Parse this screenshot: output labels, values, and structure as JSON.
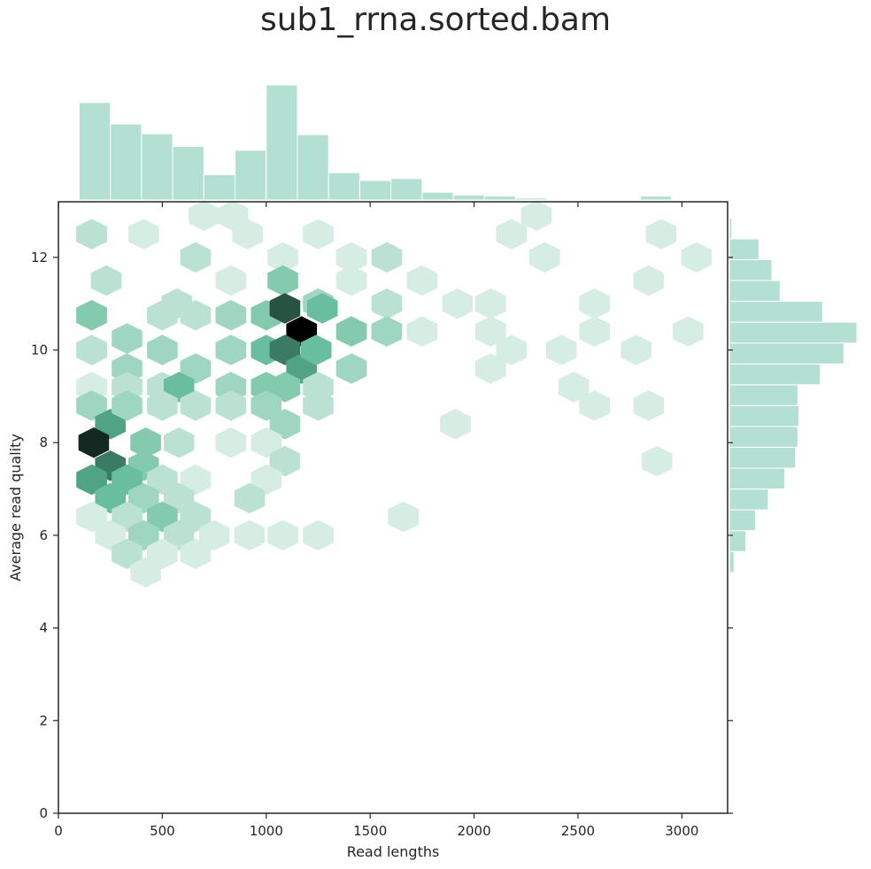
{
  "chart_data": {
    "type": "hexbin-joint",
    "title": "sub1_rrna.sorted.bam",
    "xlabel": "Read lengths",
    "ylabel": "Average read quality",
    "xlim": [
      0,
      3220
    ],
    "ylim": [
      0,
      13.2
    ],
    "x_ticks": [
      0,
      500,
      1000,
      1500,
      2000,
      2500,
      3000
    ],
    "y_ticks": [
      0,
      2,
      4,
      6,
      8,
      10,
      12
    ],
    "colors": {
      "hex_low": "#f2f9f6",
      "hex_mid": "#5ab895",
      "hex_high": "#000000",
      "marginal_fill": "#b3e0d2",
      "marginal_edge": "#ffffff",
      "axis": "#262626"
    },
    "hexbin": {
      "x_spacing": 165,
      "y_spacing": 0.5,
      "cells": [
        {
          "x": 160,
          "y": 12.5,
          "c": 2
        },
        {
          "x": 410,
          "y": 12.5,
          "c": 1
        },
        {
          "x": 660,
          "y": 12.0,
          "c": 2
        },
        {
          "x": 910,
          "y": 12.5,
          "c": 1
        },
        {
          "x": 1080,
          "y": 12.0,
          "c": 1
        },
        {
          "x": 1250,
          "y": 12.5,
          "c": 1
        },
        {
          "x": 1410,
          "y": 12.0,
          "c": 1
        },
        {
          "x": 1580,
          "y": 12.0,
          "c": 2
        },
        {
          "x": 2180,
          "y": 12.5,
          "c": 1
        },
        {
          "x": 2340,
          "y": 12.0,
          "c": 1
        },
        {
          "x": 2900,
          "y": 12.5,
          "c": 1
        },
        {
          "x": 3070,
          "y": 12.0,
          "c": 1
        },
        {
          "x": 700,
          "y": 12.9,
          "c": 1
        },
        {
          "x": 840,
          "y": 12.9,
          "c": 1
        },
        {
          "x": 2300,
          "y": 12.9,
          "c": 1
        },
        {
          "x": 230,
          "y": 11.5,
          "c": 2
        },
        {
          "x": 570,
          "y": 11.0,
          "c": 2
        },
        {
          "x": 830,
          "y": 11.5,
          "c": 1
        },
        {
          "x": 1080,
          "y": 11.5,
          "c": 4
        },
        {
          "x": 1250,
          "y": 11.0,
          "c": 3
        },
        {
          "x": 1410,
          "y": 11.5,
          "c": 1
        },
        {
          "x": 1580,
          "y": 11.0,
          "c": 2
        },
        {
          "x": 1750,
          "y": 11.5,
          "c": 1
        },
        {
          "x": 1920,
          "y": 11.0,
          "c": 1
        },
        {
          "x": 2080,
          "y": 11.0,
          "c": 1
        },
        {
          "x": 2580,
          "y": 11.0,
          "c": 1
        },
        {
          "x": 2840,
          "y": 11.5,
          "c": 1
        },
        {
          "x": 160,
          "y": 10.75,
          "c": 4
        },
        {
          "x": 330,
          "y": 10.25,
          "c": 3
        },
        {
          "x": 500,
          "y": 10.75,
          "c": 2
        },
        {
          "x": 660,
          "y": 10.75,
          "c": 2
        },
        {
          "x": 830,
          "y": 10.75,
          "c": 3
        },
        {
          "x": 1000,
          "y": 10.75,
          "c": 4
        },
        {
          "x": 1090,
          "y": 10.9,
          "c": 8
        },
        {
          "x": 1170,
          "y": 10.4,
          "c": 10
        },
        {
          "x": 1270,
          "y": 10.9,
          "c": 5
        },
        {
          "x": 1410,
          "y": 10.4,
          "c": 4
        },
        {
          "x": 1580,
          "y": 10.4,
          "c": 3
        },
        {
          "x": 1750,
          "y": 10.4,
          "c": 1
        },
        {
          "x": 2080,
          "y": 10.4,
          "c": 1
        },
        {
          "x": 2580,
          "y": 10.4,
          "c": 1
        },
        {
          "x": 2780,
          "y": 10.0,
          "c": 1
        },
        {
          "x": 3030,
          "y": 10.4,
          "c": 1
        },
        {
          "x": 160,
          "y": 10.0,
          "c": 2
        },
        {
          "x": 330,
          "y": 9.6,
          "c": 3
        },
        {
          "x": 500,
          "y": 10.0,
          "c": 3
        },
        {
          "x": 660,
          "y": 9.6,
          "c": 3
        },
        {
          "x": 830,
          "y": 10.0,
          "c": 3
        },
        {
          "x": 1000,
          "y": 10.0,
          "c": 5
        },
        {
          "x": 1090,
          "y": 10.0,
          "c": 7
        },
        {
          "x": 1170,
          "y": 9.6,
          "c": 6
        },
        {
          "x": 1240,
          "y": 10.0,
          "c": 5
        },
        {
          "x": 1410,
          "y": 9.6,
          "c": 3
        },
        {
          "x": 2180,
          "y": 10.0,
          "c": 1
        },
        {
          "x": 2420,
          "y": 10.0,
          "c": 1
        },
        {
          "x": 160,
          "y": 9.2,
          "c": 1
        },
        {
          "x": 330,
          "y": 9.2,
          "c": 2
        },
        {
          "x": 500,
          "y": 9.2,
          "c": 2
        },
        {
          "x": 580,
          "y": 9.2,
          "c": 5
        },
        {
          "x": 830,
          "y": 9.2,
          "c": 3
        },
        {
          "x": 1000,
          "y": 9.2,
          "c": 4
        },
        {
          "x": 1090,
          "y": 9.2,
          "c": 4
        },
        {
          "x": 1250,
          "y": 9.2,
          "c": 2
        },
        {
          "x": 2080,
          "y": 9.6,
          "c": 1
        },
        {
          "x": 2480,
          "y": 9.2,
          "c": 1
        },
        {
          "x": 160,
          "y": 8.8,
          "c": 3
        },
        {
          "x": 250,
          "y": 8.4,
          "c": 6
        },
        {
          "x": 330,
          "y": 8.8,
          "c": 3
        },
        {
          "x": 500,
          "y": 8.8,
          "c": 2
        },
        {
          "x": 660,
          "y": 8.8,
          "c": 2
        },
        {
          "x": 830,
          "y": 8.8,
          "c": 2
        },
        {
          "x": 1000,
          "y": 8.8,
          "c": 3
        },
        {
          "x": 1090,
          "y": 8.4,
          "c": 3
        },
        {
          "x": 1250,
          "y": 8.8,
          "c": 2
        },
        {
          "x": 2580,
          "y": 8.8,
          "c": 1
        },
        {
          "x": 2840,
          "y": 8.8,
          "c": 1
        },
        {
          "x": 1910,
          "y": 8.4,
          "c": 1
        },
        {
          "x": 170,
          "y": 8.0,
          "c": 9
        },
        {
          "x": 250,
          "y": 7.5,
          "c": 7
        },
        {
          "x": 420,
          "y": 8.0,
          "c": 4
        },
        {
          "x": 410,
          "y": 7.5,
          "c": 4
        },
        {
          "x": 580,
          "y": 8.0,
          "c": 2
        },
        {
          "x": 830,
          "y": 8.0,
          "c": 1
        },
        {
          "x": 1000,
          "y": 8.0,
          "c": 1
        },
        {
          "x": 1090,
          "y": 7.6,
          "c": 2
        },
        {
          "x": 2880,
          "y": 7.6,
          "c": 1
        },
        {
          "x": 160,
          "y": 7.2,
          "c": 6
        },
        {
          "x": 330,
          "y": 7.2,
          "c": 5
        },
        {
          "x": 500,
          "y": 7.2,
          "c": 2
        },
        {
          "x": 660,
          "y": 7.2,
          "c": 1
        },
        {
          "x": 1000,
          "y": 7.2,
          "c": 1
        },
        {
          "x": 250,
          "y": 6.8,
          "c": 5
        },
        {
          "x": 410,
          "y": 6.8,
          "c": 3
        },
        {
          "x": 580,
          "y": 6.8,
          "c": 2
        },
        {
          "x": 920,
          "y": 6.8,
          "c": 2
        },
        {
          "x": 160,
          "y": 6.4,
          "c": 1
        },
        {
          "x": 330,
          "y": 6.4,
          "c": 2
        },
        {
          "x": 500,
          "y": 6.4,
          "c": 4
        },
        {
          "x": 660,
          "y": 6.4,
          "c": 2
        },
        {
          "x": 1660,
          "y": 6.4,
          "c": 1
        },
        {
          "x": 250,
          "y": 6.0,
          "c": 1
        },
        {
          "x": 410,
          "y": 6.0,
          "c": 3
        },
        {
          "x": 580,
          "y": 6.0,
          "c": 2
        },
        {
          "x": 750,
          "y": 6.0,
          "c": 1
        },
        {
          "x": 920,
          "y": 6.0,
          "c": 1
        },
        {
          "x": 1080,
          "y": 6.0,
          "c": 1
        },
        {
          "x": 1250,
          "y": 6.0,
          "c": 1
        },
        {
          "x": 330,
          "y": 5.6,
          "c": 2
        },
        {
          "x": 500,
          "y": 5.6,
          "c": 1
        },
        {
          "x": 660,
          "y": 5.6,
          "c": 1
        },
        {
          "x": 420,
          "y": 5.2,
          "c": 1
        }
      ],
      "max_count": 10
    },
    "x_marginal": {
      "bin_edges": [
        100,
        250,
        400,
        550,
        700,
        850,
        1000,
        1150,
        1300,
        1450,
        1600,
        1750,
        1900,
        2050,
        2200,
        2350,
        2500,
        2650,
        2800,
        2950
      ],
      "counts": [
        100,
        78,
        68,
        55,
        26,
        51,
        118,
        67,
        28,
        20,
        22,
        8,
        5,
        4,
        2,
        1,
        0,
        0,
        4
      ]
    },
    "y_marginal": {
      "bin_edges": [
        5.2,
        5.65,
        6.1,
        6.55,
        7.0,
        7.45,
        7.9,
        8.35,
        8.8,
        9.25,
        9.7,
        10.15,
        10.6,
        11.05,
        11.5,
        11.95,
        12.4,
        12.85
      ],
      "counts": [
        4,
        14,
        22,
        33,
        47,
        56,
        58,
        59,
        58,
        77,
        97,
        108,
        79,
        43,
        36,
        25,
        2
      ]
    },
    "grid": false,
    "legend": false
  }
}
